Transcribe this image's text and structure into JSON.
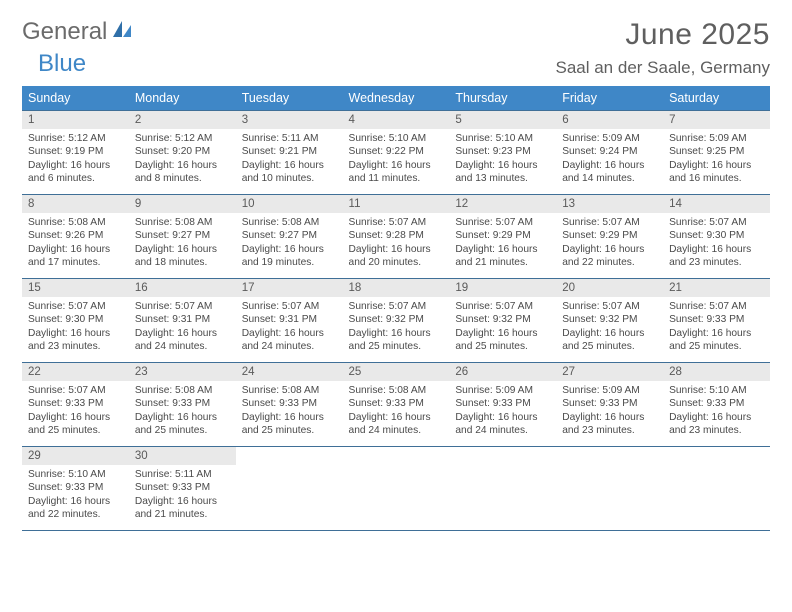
{
  "logo": {
    "word1": "General",
    "word2": "Blue"
  },
  "title": "June 2025",
  "location": "Saal an der Saale, Germany",
  "colors": {
    "header_bg": "#3f87c7",
    "header_text": "#ffffff",
    "row_border": "#3f6f97",
    "daynum_bg": "#e9e9e9",
    "body_text": "#4a4a4a",
    "title_text": "#5f5f5f"
  },
  "days_of_week": [
    "Sunday",
    "Monday",
    "Tuesday",
    "Wednesday",
    "Thursday",
    "Friday",
    "Saturday"
  ],
  "labels": {
    "sunrise": "Sunrise:",
    "sunset": "Sunset:",
    "daylight": "Daylight:"
  },
  "weeks": [
    [
      {
        "n": "1",
        "sunrise": "5:12 AM",
        "sunset": "9:19 PM",
        "daylight": "16 hours and 6 minutes."
      },
      {
        "n": "2",
        "sunrise": "5:12 AM",
        "sunset": "9:20 PM",
        "daylight": "16 hours and 8 minutes."
      },
      {
        "n": "3",
        "sunrise": "5:11 AM",
        "sunset": "9:21 PM",
        "daylight": "16 hours and 10 minutes."
      },
      {
        "n": "4",
        "sunrise": "5:10 AM",
        "sunset": "9:22 PM",
        "daylight": "16 hours and 11 minutes."
      },
      {
        "n": "5",
        "sunrise": "5:10 AM",
        "sunset": "9:23 PM",
        "daylight": "16 hours and 13 minutes."
      },
      {
        "n": "6",
        "sunrise": "5:09 AM",
        "sunset": "9:24 PM",
        "daylight": "16 hours and 14 minutes."
      },
      {
        "n": "7",
        "sunrise": "5:09 AM",
        "sunset": "9:25 PM",
        "daylight": "16 hours and 16 minutes."
      }
    ],
    [
      {
        "n": "8",
        "sunrise": "5:08 AM",
        "sunset": "9:26 PM",
        "daylight": "16 hours and 17 minutes."
      },
      {
        "n": "9",
        "sunrise": "5:08 AM",
        "sunset": "9:27 PM",
        "daylight": "16 hours and 18 minutes."
      },
      {
        "n": "10",
        "sunrise": "5:08 AM",
        "sunset": "9:27 PM",
        "daylight": "16 hours and 19 minutes."
      },
      {
        "n": "11",
        "sunrise": "5:07 AM",
        "sunset": "9:28 PM",
        "daylight": "16 hours and 20 minutes."
      },
      {
        "n": "12",
        "sunrise": "5:07 AM",
        "sunset": "9:29 PM",
        "daylight": "16 hours and 21 minutes."
      },
      {
        "n": "13",
        "sunrise": "5:07 AM",
        "sunset": "9:29 PM",
        "daylight": "16 hours and 22 minutes."
      },
      {
        "n": "14",
        "sunrise": "5:07 AM",
        "sunset": "9:30 PM",
        "daylight": "16 hours and 23 minutes."
      }
    ],
    [
      {
        "n": "15",
        "sunrise": "5:07 AM",
        "sunset": "9:30 PM",
        "daylight": "16 hours and 23 minutes."
      },
      {
        "n": "16",
        "sunrise": "5:07 AM",
        "sunset": "9:31 PM",
        "daylight": "16 hours and 24 minutes."
      },
      {
        "n": "17",
        "sunrise": "5:07 AM",
        "sunset": "9:31 PM",
        "daylight": "16 hours and 24 minutes."
      },
      {
        "n": "18",
        "sunrise": "5:07 AM",
        "sunset": "9:32 PM",
        "daylight": "16 hours and 25 minutes."
      },
      {
        "n": "19",
        "sunrise": "5:07 AM",
        "sunset": "9:32 PM",
        "daylight": "16 hours and 25 minutes."
      },
      {
        "n": "20",
        "sunrise": "5:07 AM",
        "sunset": "9:32 PM",
        "daylight": "16 hours and 25 minutes."
      },
      {
        "n": "21",
        "sunrise": "5:07 AM",
        "sunset": "9:33 PM",
        "daylight": "16 hours and 25 minutes."
      }
    ],
    [
      {
        "n": "22",
        "sunrise": "5:07 AM",
        "sunset": "9:33 PM",
        "daylight": "16 hours and 25 minutes."
      },
      {
        "n": "23",
        "sunrise": "5:08 AM",
        "sunset": "9:33 PM",
        "daylight": "16 hours and 25 minutes."
      },
      {
        "n": "24",
        "sunrise": "5:08 AM",
        "sunset": "9:33 PM",
        "daylight": "16 hours and 25 minutes."
      },
      {
        "n": "25",
        "sunrise": "5:08 AM",
        "sunset": "9:33 PM",
        "daylight": "16 hours and 24 minutes."
      },
      {
        "n": "26",
        "sunrise": "5:09 AM",
        "sunset": "9:33 PM",
        "daylight": "16 hours and 24 minutes."
      },
      {
        "n": "27",
        "sunrise": "5:09 AM",
        "sunset": "9:33 PM",
        "daylight": "16 hours and 23 minutes."
      },
      {
        "n": "28",
        "sunrise": "5:10 AM",
        "sunset": "9:33 PM",
        "daylight": "16 hours and 23 minutes."
      }
    ],
    [
      {
        "n": "29",
        "sunrise": "5:10 AM",
        "sunset": "9:33 PM",
        "daylight": "16 hours and 22 minutes."
      },
      {
        "n": "30",
        "sunrise": "5:11 AM",
        "sunset": "9:33 PM",
        "daylight": "16 hours and 21 minutes."
      },
      null,
      null,
      null,
      null,
      null
    ]
  ]
}
